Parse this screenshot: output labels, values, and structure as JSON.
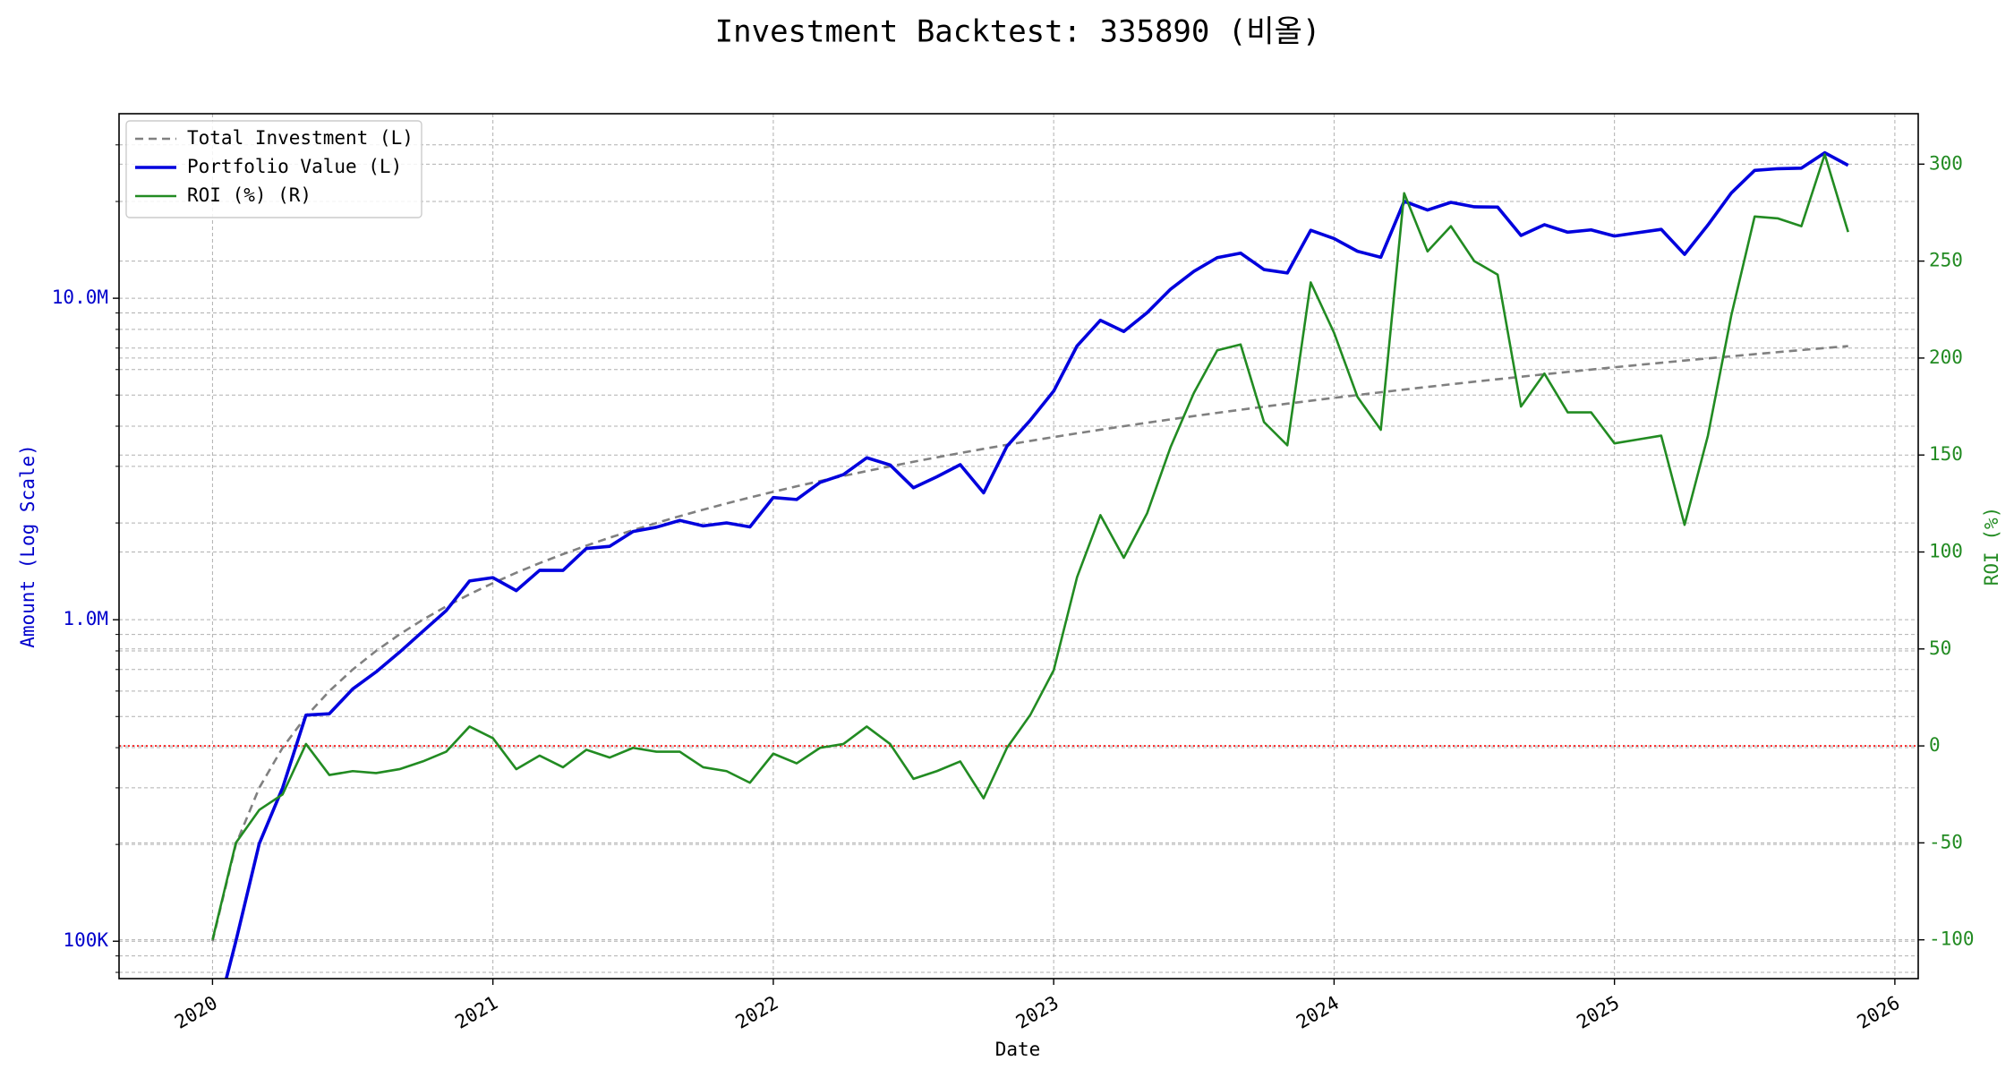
{
  "chart_data": {
    "type": "line",
    "title": "Investment Backtest: 335890 (비올)",
    "xlabel": "Date",
    "ylabel": "Amount (Log Scale)",
    "y2label": "ROI (%)",
    "x": [
      "2020-01",
      "2020-02",
      "2020-03",
      "2020-04",
      "2020-05",
      "2020-06",
      "2020-07",
      "2020-08",
      "2020-09",
      "2020-10",
      "2020-11",
      "2020-12",
      "2021-01",
      "2021-02",
      "2021-03",
      "2021-04",
      "2021-05",
      "2021-06",
      "2021-07",
      "2021-08",
      "2021-09",
      "2021-10",
      "2021-11",
      "2021-12",
      "2022-01",
      "2022-02",
      "2022-03",
      "2022-04",
      "2022-05",
      "2022-06",
      "2022-07",
      "2022-08",
      "2022-09",
      "2022-10",
      "2022-11",
      "2022-12",
      "2023-01",
      "2023-02",
      "2023-03",
      "2023-04",
      "2023-05",
      "2023-06",
      "2023-07",
      "2023-08",
      "2023-09",
      "2023-10",
      "2023-11",
      "2023-12",
      "2024-01",
      "2024-02",
      "2024-03",
      "2024-04",
      "2024-05",
      "2024-06",
      "2024-07",
      "2024-08",
      "2024-09",
      "2024-10",
      "2024-11",
      "2024-12",
      "2025-01",
      "2025-02",
      "2025-03",
      "2025-04",
      "2025-05",
      "2025-06",
      "2025-07",
      "2025-08",
      "2025-09",
      "2025-10",
      "2025-11"
    ],
    "xlim": [
      "2019-09",
      "2026-02"
    ],
    "xticks": [
      "2020",
      "2021",
      "2022",
      "2023",
      "2024",
      "2025",
      "2026"
    ],
    "log_y": true,
    "ylim": [
      76500,
      37500000
    ],
    "yticks": [
      {
        "value": 100000,
        "label": "100K"
      },
      {
        "value": 1000000,
        "label": "1.0M"
      },
      {
        "value": 10000000,
        "label": "10.0M"
      }
    ],
    "yminorticks": [
      80000,
      90000,
      200000,
      300000,
      400000,
      500000,
      600000,
      700000,
      800000,
      900000,
      2000000,
      3000000,
      4000000,
      5000000,
      6000000,
      7000000,
      8000000,
      9000000,
      20000000,
      30000000
    ],
    "y2lim": [
      -120,
      326
    ],
    "y2ticks": [
      -100,
      -50,
      0,
      50,
      100,
      150,
      200,
      250,
      300
    ],
    "grid": true,
    "legend": "upper left",
    "ylabel_color": "#0000cc",
    "y2label_color": "#228b22",
    "reference_line": {
      "axis": "y2",
      "value": 0,
      "color": "#ff0000"
    },
    "series": [
      {
        "name": "Total Investment (L)",
        "color": "#808080",
        "dashed": true,
        "axis": "y",
        "values": [
          100000,
          200000,
          300000,
          400000,
          500000,
          600000,
          700000,
          800000,
          900000,
          1000000,
          1100000,
          1200000,
          1300000,
          1400000,
          1500000,
          1600000,
          1700000,
          1800000,
          1900000,
          2000000,
          2100000,
          2200000,
          2300000,
          2400000,
          2500000,
          2600000,
          2700000,
          2800000,
          2900000,
          3000000,
          3100000,
          3200000,
          3300000,
          3400000,
          3500000,
          3600000,
          3700000,
          3800000,
          3900000,
          4000000,
          4100000,
          4200000,
          4300000,
          4400000,
          4500000,
          4600000,
          4700000,
          4800000,
          4900000,
          5000000,
          5100000,
          5200000,
          5300000,
          5400000,
          5500000,
          5600000,
          5700000,
          5800000,
          5900000,
          6000000,
          6100000,
          6200000,
          6300000,
          6400000,
          6500000,
          6600000,
          6700000,
          6800000,
          6900000,
          7000000,
          7100000
        ]
      },
      {
        "name": "Portfolio Value (L)",
        "color": "#0000dd",
        "dashed": false,
        "axis": "y",
        "values": [
          0,
          100000,
          201000,
          300000,
          505000,
          510000,
          609000,
          688000,
          792000,
          920000,
          1067000,
          1320000,
          1352000,
          1232000,
          1425000,
          1424000,
          1666000,
          1692000,
          1881000,
          1940000,
          2037000,
          1958000,
          2001000,
          1944000,
          2400000,
          2366000,
          2673000,
          2828000,
          3190000,
          3030000,
          2573000,
          2784000,
          3036000,
          2482000,
          3465000,
          4176000,
          5143000,
          7106000,
          8541000,
          7880000,
          9020000,
          10668000,
          12126000,
          13376000,
          13815000,
          12282000,
          11985000,
          16272000,
          15337000,
          14000000,
          13413000,
          20020000,
          18815000,
          19872000,
          19250000,
          19208000,
          15675000,
          16936000,
          16048000,
          16320000,
          15616000,
          15996000,
          16380000,
          13696000,
          16900000,
          21252000,
          24991000,
          25296000,
          25392000,
          28350000,
          25915000
        ]
      },
      {
        "name": "ROI (%) (R)",
        "color": "#228b22",
        "dashed": false,
        "axis": "y2",
        "values": [
          -100,
          -50,
          -33,
          -25,
          1,
          -15,
          -13,
          -14,
          -12,
          -8,
          -3,
          10,
          4,
          -12,
          -5,
          -11,
          -2,
          -6,
          -1,
          -3,
          -3,
          -11,
          -13,
          -19,
          -4,
          -9,
          -1,
          1,
          10,
          1,
          -17,
          -13,
          -8,
          -27,
          -1,
          16,
          39,
          87,
          119,
          97,
          120,
          154,
          182,
          204,
          207,
          167,
          155,
          239,
          213,
          180,
          163,
          285,
          255,
          268,
          250,
          243,
          175,
          192,
          172,
          172,
          156,
          158,
          160,
          114,
          160,
          222,
          273,
          272,
          268,
          305,
          265
        ]
      }
    ]
  }
}
